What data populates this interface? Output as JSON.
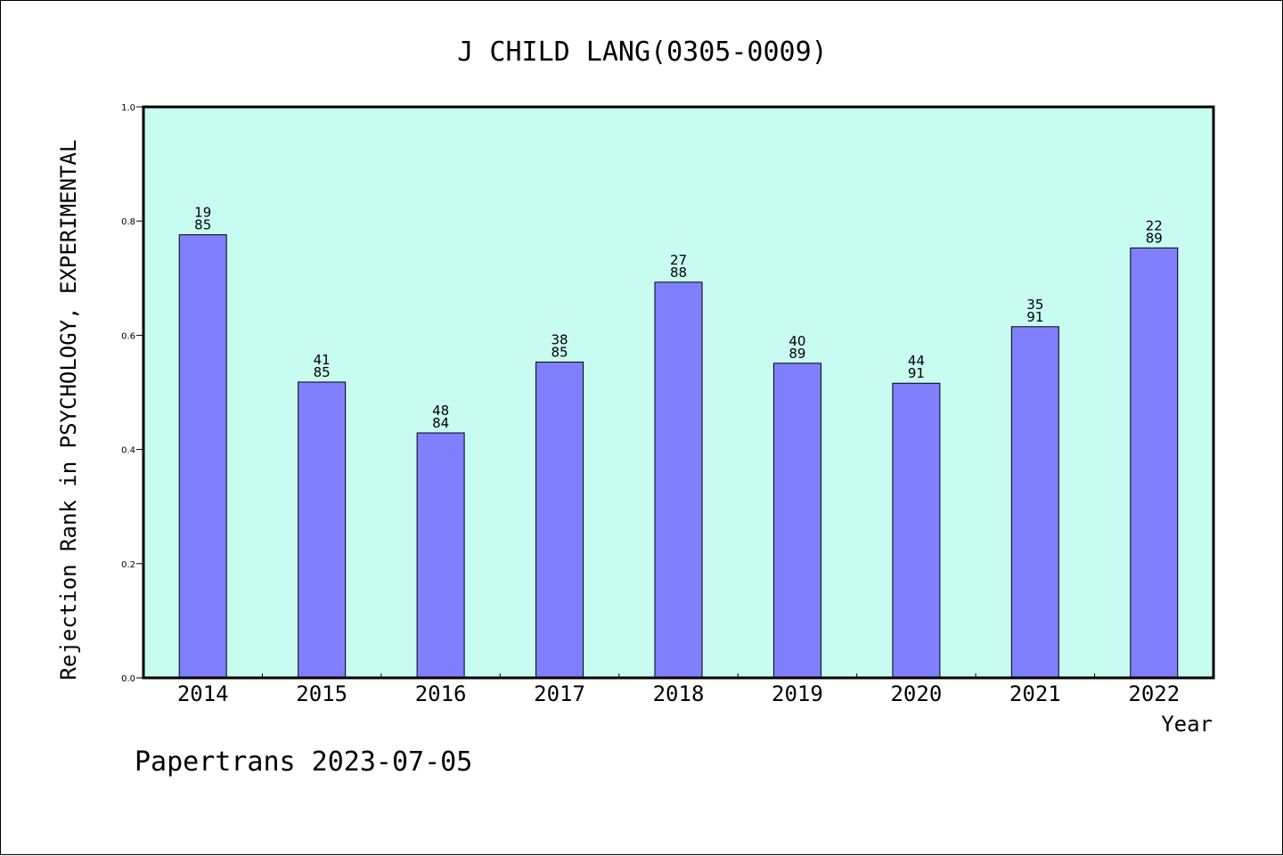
{
  "chart_data": {
    "type": "bar",
    "title": "J CHILD LANG(0305-0009)",
    "xlabel": "Year",
    "ylabel": "Rejection Rank in PSYCHOLOGY, EXPERIMENTAL",
    "ylim": [
      0,
      1.0
    ],
    "yticks": [
      "0.0",
      "0.2",
      "0.4",
      "0.6",
      "0.8",
      "1.0"
    ],
    "categories": [
      "2014",
      "2015",
      "2016",
      "2017",
      "2018",
      "2019",
      "2020",
      "2021",
      "2022"
    ],
    "values": [
      0.776,
      0.518,
      0.429,
      0.553,
      0.693,
      0.551,
      0.516,
      0.615,
      0.753
    ],
    "labels_top": [
      "19",
      "41",
      "48",
      "38",
      "27",
      "40",
      "44",
      "35",
      "22"
    ],
    "labels_bottom": [
      "85",
      "85",
      "84",
      "85",
      "88",
      "89",
      "91",
      "91",
      "89"
    ],
    "grid": false,
    "colors": {
      "plot_background": "#c8fcf0",
      "bar_fill": "#8080ff",
      "bar_stroke": "#000000"
    }
  },
  "footer": "Papertrans 2023-07-05"
}
